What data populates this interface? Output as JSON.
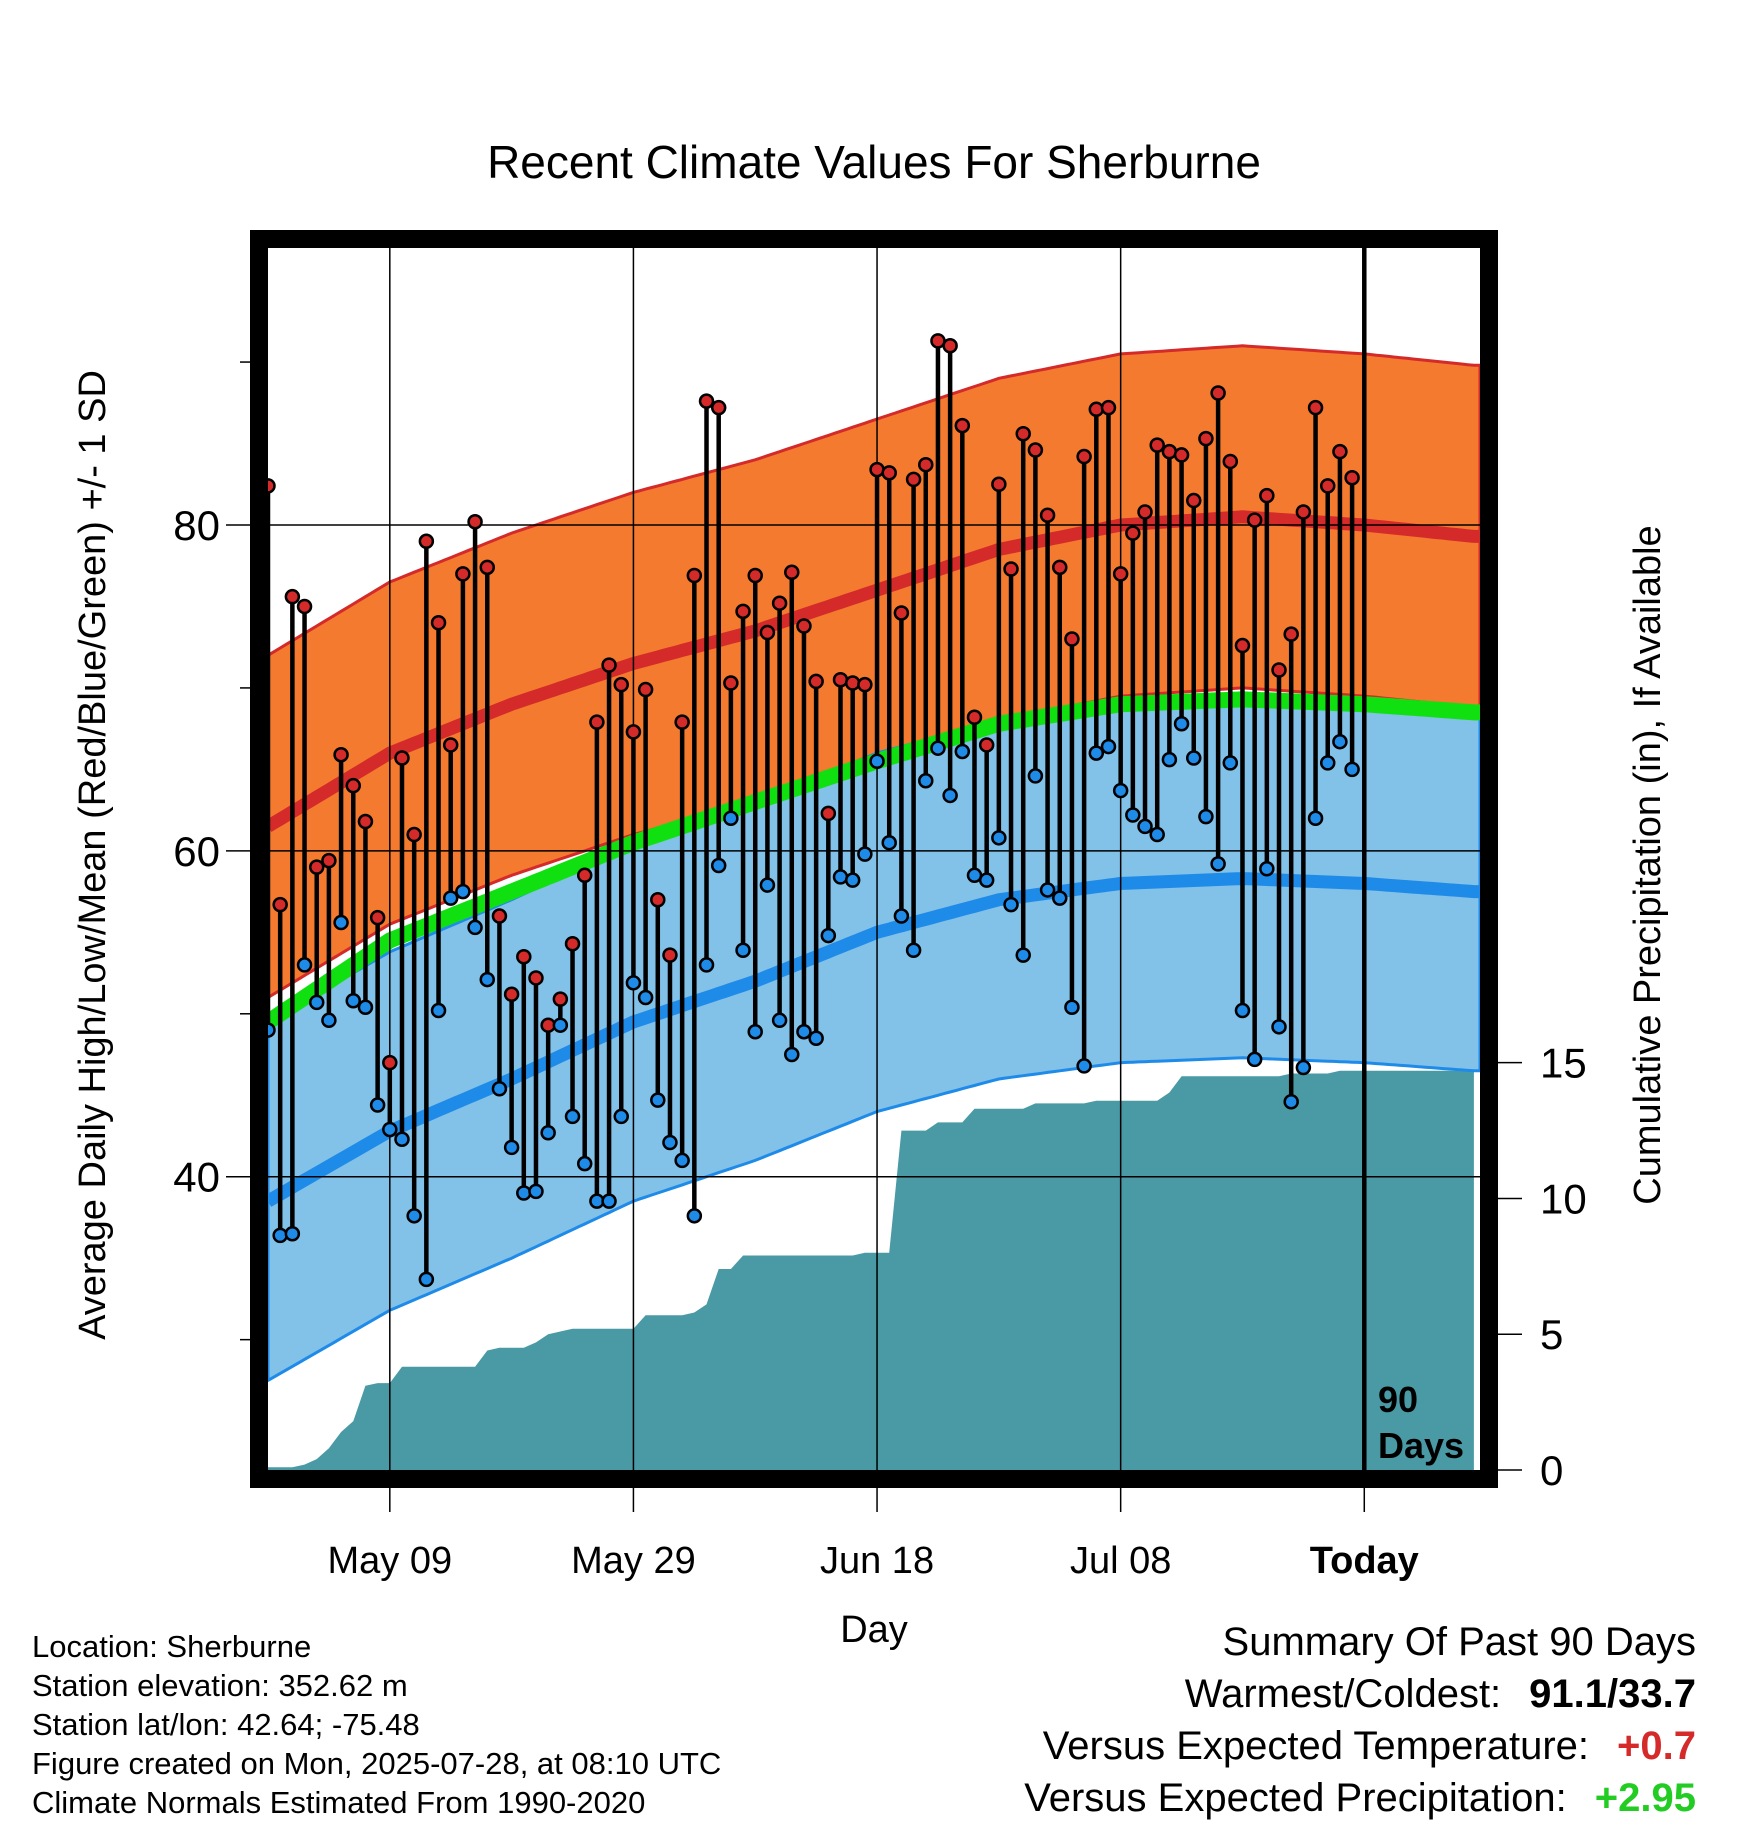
{
  "chart_data": {
    "type": "line",
    "title": "Recent Climate Values For Sherburne",
    "xlabel": "Day",
    "ylabel": "Average Daily High/Low/Mean (Red/Blue/Green) +/- 1 SD",
    "y2label": "Cumulative Precipitation (in), If Available",
    "ylim": [
      22,
      97
    ],
    "y2lim": [
      0,
      45
    ],
    "yticks": [
      80,
      60,
      40
    ],
    "y2ticks": [
      15,
      10,
      5,
      0
    ],
    "xticks": [
      {
        "day": 10,
        "label": "May 09"
      },
      {
        "day": 30,
        "label": "May 29"
      },
      {
        "day": 50,
        "label": "Jun 18"
      },
      {
        "day": 70,
        "label": "Jul 08"
      },
      {
        "day": 90,
        "label": "Today"
      }
    ],
    "marker_label": "90 Days",
    "x_range_days": [
      0,
      99.5
    ],
    "normals": {
      "days": [
        0,
        10,
        20,
        30,
        40,
        50,
        60,
        70,
        80,
        90,
        99
      ],
      "high_mean": [
        61.5,
        66.0,
        69.0,
        71.5,
        73.5,
        76.0,
        78.5,
        80.0,
        80.5,
        80.0,
        79.3
      ],
      "high_sd": 10.5,
      "low_mean": [
        38.5,
        42.8,
        46.0,
        49.5,
        52.0,
        55.0,
        57.0,
        58.0,
        58.3,
        58.0,
        57.5
      ],
      "low_sd": 11.0,
      "mean": [
        49.5,
        54.5,
        57.5,
        60.5,
        63.0,
        65.5,
        67.8,
        69.0,
        69.3,
        69.0,
        68.5
      ]
    },
    "series": [
      {
        "name": "High",
        "color": "#d42a2a",
        "values": [
          82.4,
          56.7,
          75.6,
          75.0,
          59.0,
          59.4,
          65.9,
          64.0,
          61.8,
          55.9,
          47.0,
          65.7,
          61.0,
          79.0,
          74.0,
          66.5,
          77.0,
          80.2,
          77.4,
          56.0,
          51.2,
          53.5,
          52.2,
          49.3,
          50.9,
          54.3,
          58.5,
          67.9,
          71.4,
          70.2,
          67.3,
          69.9,
          57.0,
          53.6,
          67.9,
          76.9,
          87.6,
          87.2,
          70.3,
          74.7,
          76.9,
          73.4,
          75.2,
          77.1,
          73.8,
          70.4,
          62.3,
          70.5,
          70.3,
          70.2,
          83.4,
          83.2,
          74.6,
          82.8,
          83.7,
          91.3,
          91.0,
          86.1,
          68.2,
          66.5,
          82.5,
          77.3,
          85.6,
          84.6,
          80.6,
          77.4,
          73.0,
          84.2,
          87.1,
          87.2,
          77.0,
          79.5,
          80.8,
          84.9,
          84.5,
          84.3,
          81.5,
          85.3,
          88.1,
          83.9,
          72.6,
          80.3,
          81.8,
          71.1,
          73.3,
          80.8,
          87.2,
          82.4,
          84.5,
          82.9
        ]
      },
      {
        "name": "Low",
        "color": "#1f8be8",
        "values": [
          49.0,
          36.4,
          36.5,
          53.0,
          50.7,
          49.6,
          55.6,
          50.8,
          50.4,
          44.4,
          42.9,
          42.3,
          37.6,
          33.7,
          50.2,
          57.1,
          57.5,
          55.3,
          52.1,
          45.4,
          41.8,
          39.0,
          39.1,
          42.7,
          49.3,
          43.7,
          40.8,
          38.5,
          38.5,
          43.7,
          51.9,
          51.0,
          44.7,
          42.1,
          41.0,
          37.6,
          53.0,
          59.1,
          62.0,
          53.9,
          48.9,
          57.9,
          49.6,
          47.5,
          48.9,
          48.5,
          54.8,
          58.4,
          58.2,
          59.8,
          65.5,
          60.5,
          56.0,
          53.9,
          64.3,
          66.3,
          63.4,
          66.1,
          58.5,
          58.2,
          60.8,
          56.7,
          53.6,
          64.6,
          57.6,
          57.1,
          50.4,
          46.8,
          66.0,
          66.4,
          63.7,
          62.2,
          61.5,
          61.0,
          65.6,
          67.8,
          65.7,
          62.1,
          59.2,
          65.4,
          50.2,
          47.2,
          58.9,
          49.2,
          44.6,
          46.7,
          62.0,
          65.4,
          66.7,
          65.0
        ]
      },
      {
        "name": "Precipitation",
        "color": "#4a9aa6",
        "x": [
          0,
          2,
          3,
          4,
          5,
          6,
          7,
          8,
          9,
          10,
          11,
          12,
          15,
          17,
          18,
          19,
          20,
          21,
          22,
          23,
          24,
          25,
          26,
          27,
          30,
          31,
          33,
          34,
          35,
          36,
          37,
          38,
          39,
          40,
          42,
          45,
          47,
          48,
          49,
          50,
          51,
          52,
          53,
          54,
          55,
          57,
          58,
          59,
          60,
          61,
          62,
          63,
          64,
          65,
          66,
          67,
          68,
          70,
          71,
          72,
          73,
          74,
          75,
          76,
          77,
          78,
          81,
          83,
          84,
          85,
          87,
          88,
          89,
          90,
          91,
          92,
          93,
          94,
          95,
          96,
          97,
          98,
          99
        ],
        "values": [
          0.1,
          0.1,
          0.2,
          0.4,
          0.8,
          1.4,
          1.8,
          3.1,
          3.2,
          3.2,
          3.8,
          3.8,
          3.8,
          3.8,
          4.4,
          4.5,
          4.5,
          4.5,
          4.7,
          5.0,
          5.1,
          5.2,
          5.2,
          5.2,
          5.2,
          5.7,
          5.7,
          5.7,
          5.8,
          6.1,
          7.4,
          7.4,
          7.9,
          7.9,
          7.9,
          7.9,
          7.9,
          7.9,
          8.0,
          8.0,
          8.0,
          12.5,
          12.5,
          12.5,
          12.8,
          12.8,
          13.3,
          13.3,
          13.3,
          13.3,
          13.3,
          13.5,
          13.5,
          13.5,
          13.5,
          13.5,
          13.6,
          13.6,
          13.6,
          13.6,
          13.6,
          13.9,
          14.5,
          14.5,
          14.5,
          14.5,
          14.5,
          14.5,
          14.6,
          14.6,
          14.6,
          14.7,
          14.7,
          14.7,
          14.7,
          14.7,
          14.7,
          14.7,
          14.7,
          14.7,
          14.7,
          14.7,
          14.7
        ]
      }
    ],
    "bands": {
      "high_band": "#f47a30",
      "high_line": "#d42a2a",
      "low_band": "#82c1e8",
      "low_line": "#1f8be8",
      "mean_line": "#10e010",
      "precip_fill": "#4a9aa6"
    },
    "grid": true
  },
  "info": {
    "location": "Location: Sherburne",
    "elevation": "Station elevation: 352.62 m",
    "latlon": "Station lat/lon: 42.64; -75.48",
    "created": "Figure created on Mon, 2025-07-28, at 08:10 UTC",
    "normals": "Climate Normals Estimated From 1990-2020"
  },
  "summary": {
    "heading": "Summary Of Past 90 Days",
    "warm_cold_label": "Warmest/Coldest:",
    "warm_cold_value": "91.1/33.7",
    "temp_label": "Versus Expected Temperature:",
    "temp_value": "+0.7",
    "temp_color": "#d42a2a",
    "precip_label": "Versus Expected Precipitation:",
    "precip_value": "+2.95",
    "precip_color": "#22cc22"
  }
}
